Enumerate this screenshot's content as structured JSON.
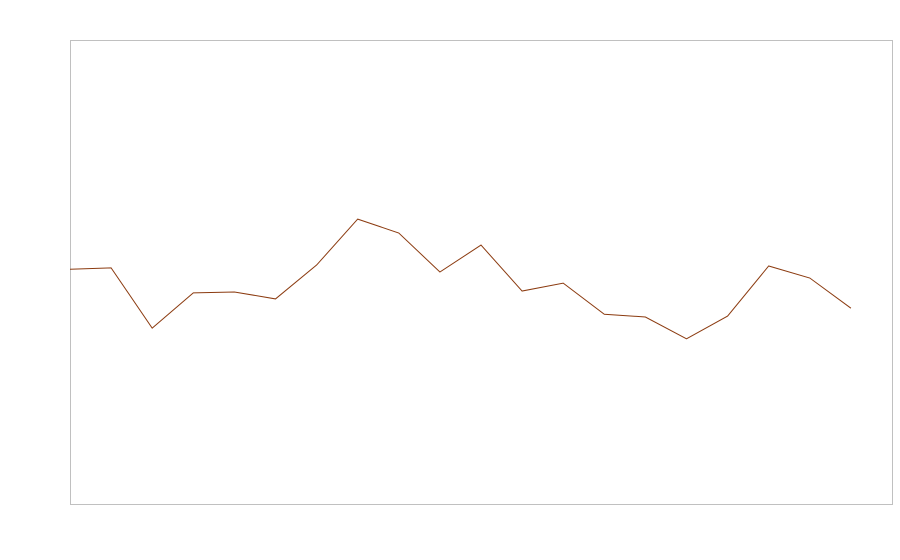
{
  "chart_data": {
    "type": "line",
    "title": "",
    "xlabel": "",
    "ylabel": "",
    "x": [
      1,
      2,
      3,
      4,
      5,
      6,
      7,
      8,
      9,
      10,
      11,
      12,
      13,
      14,
      15,
      16,
      17,
      18,
      19,
      20
    ],
    "series": [
      {
        "values": [
          50.6,
          50.9,
          37.9,
          45.5,
          45.7,
          44.2,
          51.5,
          61.4,
          58.4,
          50.0,
          55.8,
          45.9,
          47.6,
          40.9,
          40.3,
          35.6,
          40.5,
          51.3,
          48.7,
          42.2
        ],
        "color": "#8b3a0f"
      }
    ],
    "xlim": [
      1,
      21
    ],
    "ylim": [
      0,
      100
    ],
    "grid": false,
    "frame_color": "#c0c0c0"
  }
}
